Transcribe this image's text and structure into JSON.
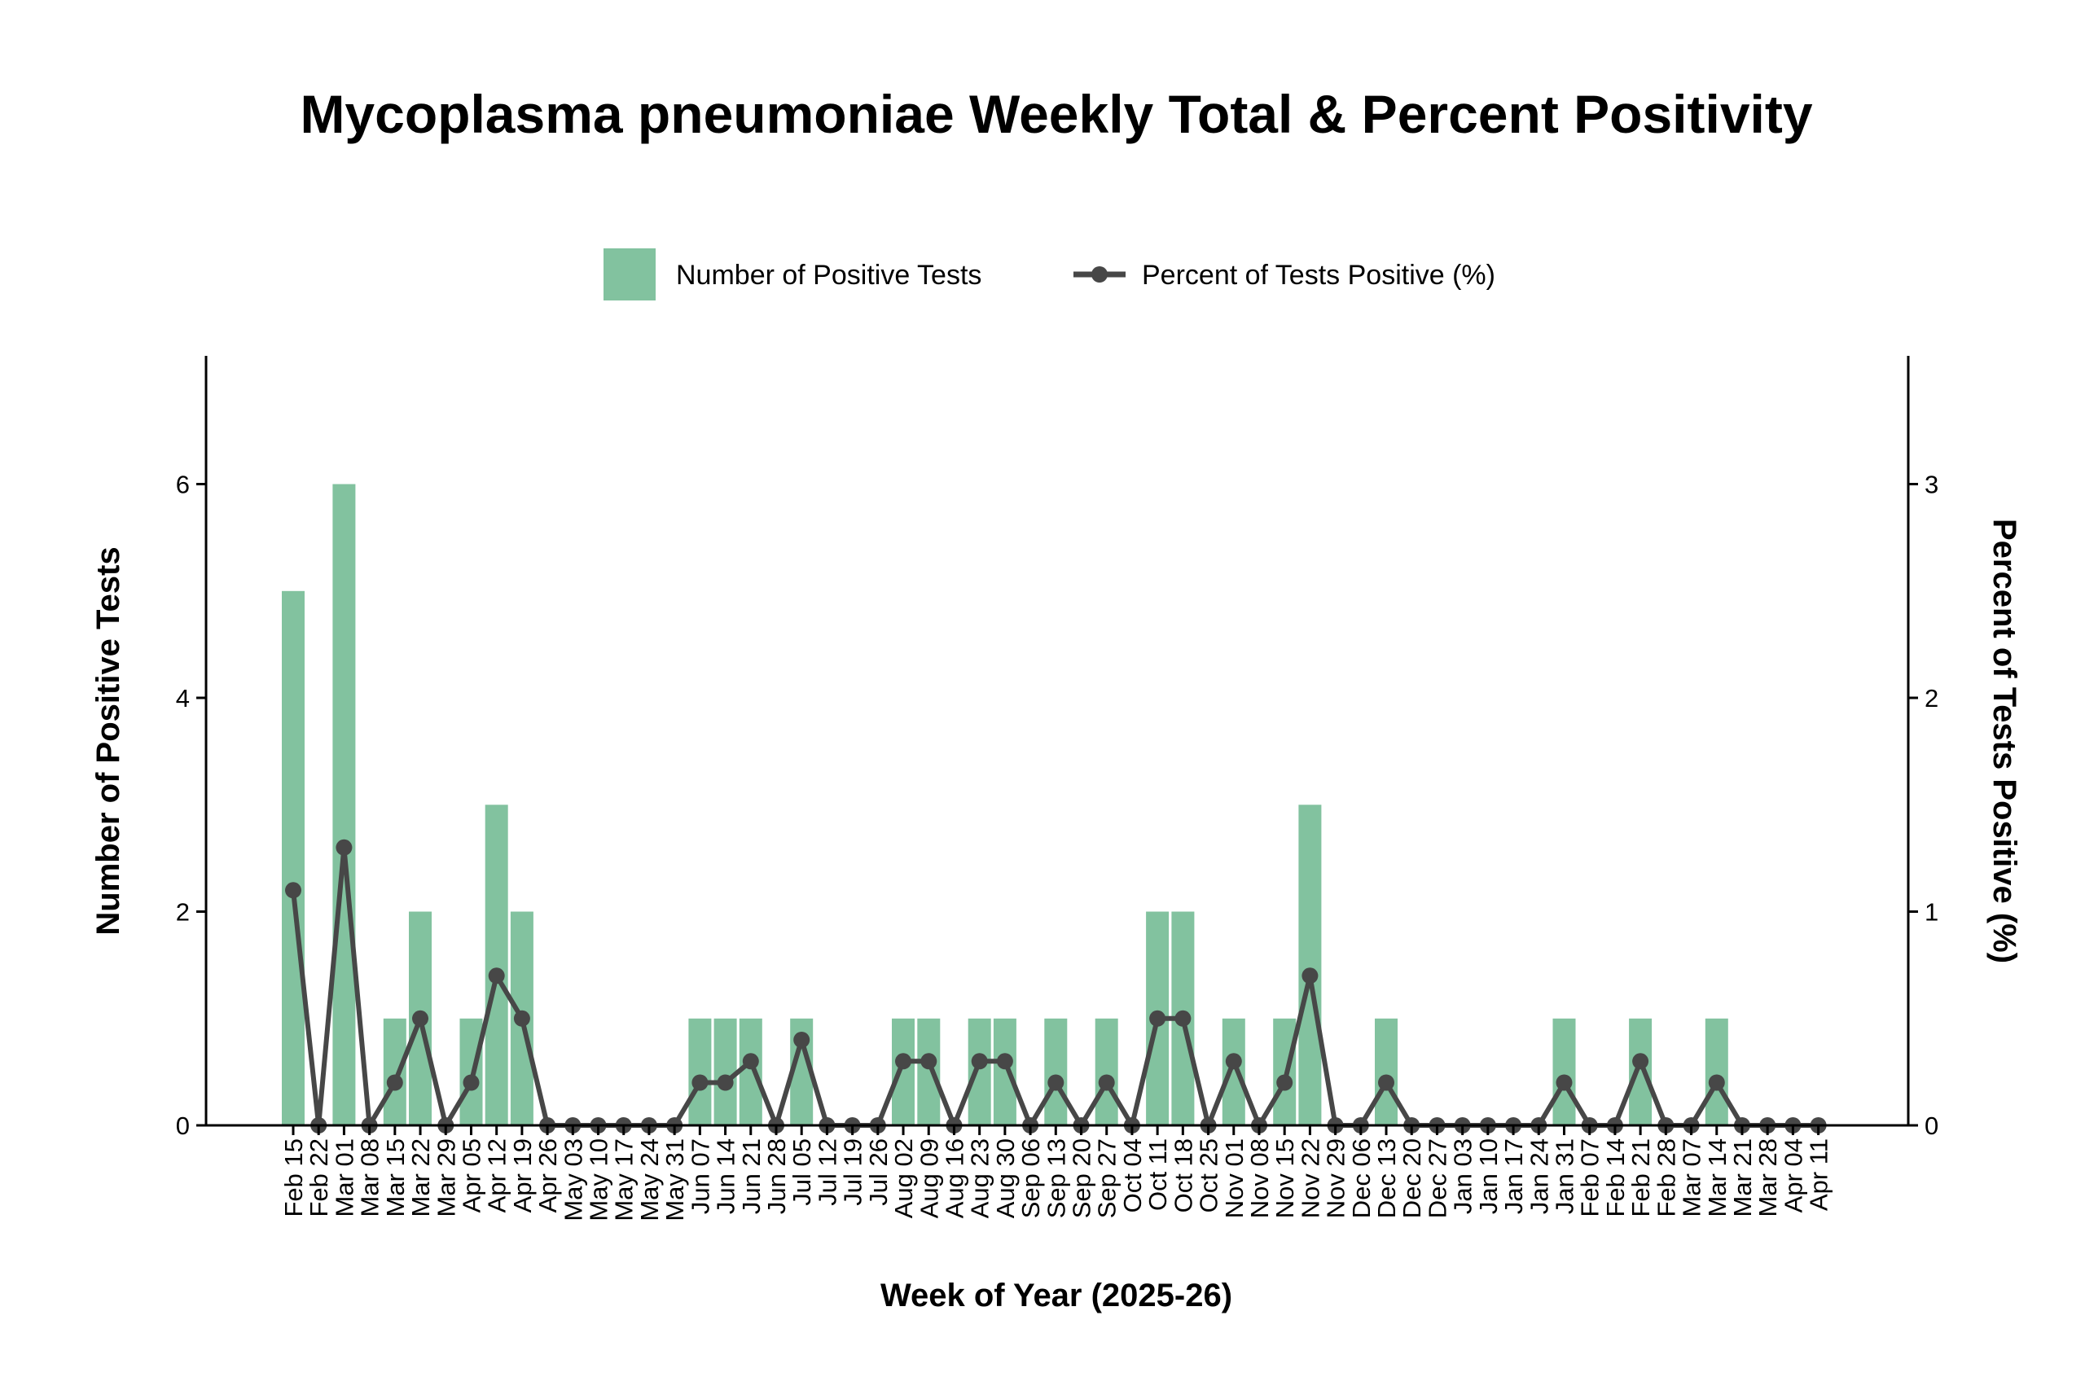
{
  "chart_data": {
    "type": "bar",
    "title": "Mycoplasma pneumoniae Weekly Total & Percent Positivity",
    "xlabel": "Week of Year (2025-26)",
    "ylabel": "Number of Positive Tests",
    "y2label": "Percent of Tests Positive (%)",
    "ylim": [
      0,
      7.2
    ],
    "y2lim": [
      0,
      3.6
    ],
    "yticks": [
      "0",
      "2",
      "4",
      "6"
    ],
    "y2ticks": [
      "0",
      "1",
      "2",
      "3"
    ],
    "legend": {
      "placement": "top-center",
      "bar_label": "Number of Positive Tests",
      "line_label": "Percent of Tests Positive (%)"
    },
    "colors": {
      "bar": "#82c29f",
      "line": "#474747"
    },
    "categories": [
      "Feb 15",
      "Feb 22",
      "Mar 01",
      "Mar 08",
      "Mar 15",
      "Mar 22",
      "Mar 29",
      "Apr 05",
      "Apr 12",
      "Apr 19",
      "Apr 26",
      "May 03",
      "May 10",
      "May 17",
      "May 24",
      "May 31",
      "Jun 07",
      "Jun 14",
      "Jun 21",
      "Jun 28",
      "Jul 05",
      "Jul 12",
      "Jul 19",
      "Jul 26",
      "Aug 02",
      "Aug 09",
      "Aug 16",
      "Aug 23",
      "Aug 30",
      "Sep 06",
      "Sep 13",
      "Sep 20",
      "Sep 27",
      "Oct 04",
      "Oct 11",
      "Oct 18",
      "Oct 25",
      "Nov 01",
      "Nov 08",
      "Nov 15",
      "Nov 22",
      "Nov 29",
      "Dec 06",
      "Dec 13",
      "Dec 20",
      "Dec 27",
      "Jan 03",
      "Jan 10",
      "Jan 17",
      "Jan 24",
      "Jan 31",
      "Feb 07",
      "Feb 14",
      "Feb 21",
      "Feb 28",
      "Mar 07",
      "Mar 14",
      "Mar 21",
      "Mar 28",
      "Apr 04",
      "Apr 11"
    ],
    "series": [
      {
        "name": "Number of Positive Tests",
        "type": "bar",
        "axis": "left",
        "values": [
          5,
          0,
          6,
          0,
          1,
          2,
          0,
          1,
          3,
          2,
          0,
          0,
          0,
          0,
          0,
          0,
          1,
          1,
          1,
          0,
          1,
          0,
          0,
          0,
          1,
          1,
          0,
          1,
          1,
          0,
          1,
          0,
          1,
          0,
          2,
          2,
          0,
          1,
          0,
          1,
          3,
          0,
          0,
          1,
          0,
          0,
          0,
          0,
          0,
          0,
          1,
          0,
          0,
          1,
          0,
          0,
          1,
          0,
          0,
          0,
          0
        ]
      },
      {
        "name": "Percent of Tests Positive (%)",
        "type": "line",
        "axis": "right",
        "values": [
          1.1,
          0,
          1.3,
          0,
          0.2,
          0.5,
          0,
          0.2,
          0.7,
          0.5,
          0,
          0,
          0,
          0,
          0,
          0,
          0.2,
          0.2,
          0.3,
          0,
          0.4,
          0,
          0,
          0,
          0.3,
          0.3,
          0,
          0.3,
          0.3,
          0,
          0.2,
          0,
          0.2,
          0,
          0.5,
          0.5,
          0,
          0.3,
          0,
          0.2,
          0.7,
          0,
          0,
          0.2,
          0,
          0,
          0,
          0,
          0,
          0,
          0.2,
          0,
          0,
          0.3,
          0,
          0,
          0.2,
          0,
          0,
          0,
          0
        ]
      }
    ]
  }
}
